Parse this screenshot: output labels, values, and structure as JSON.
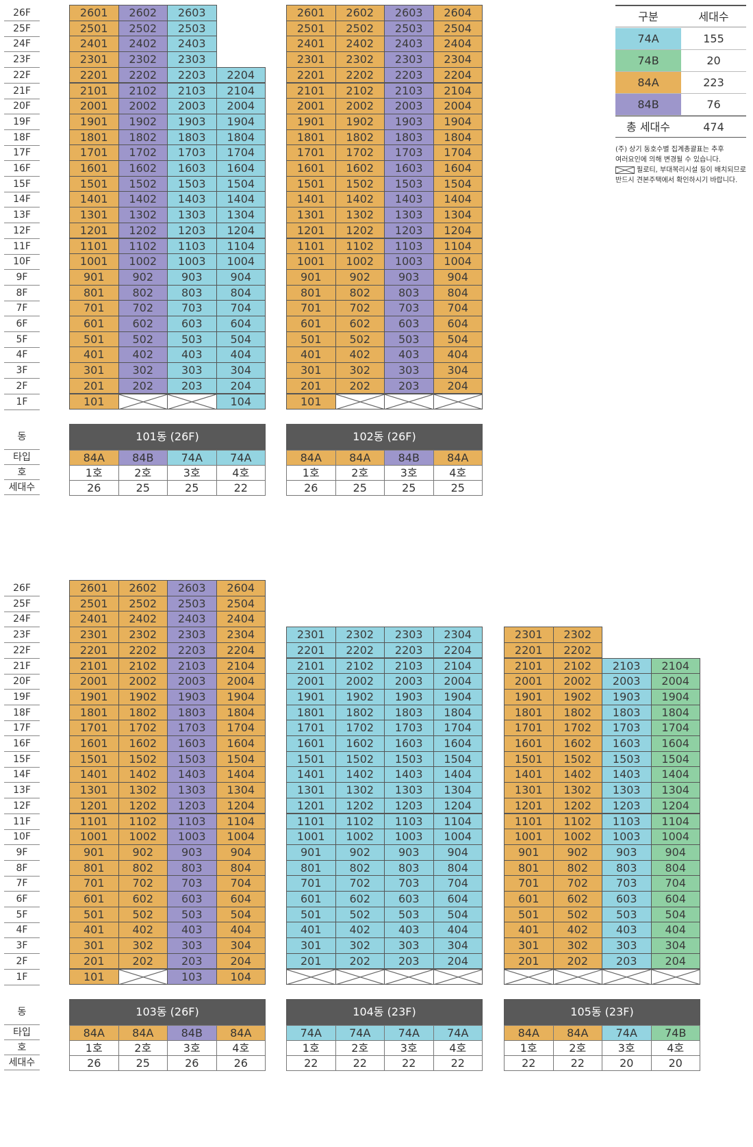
{
  "colors": {
    "74A": "#94d4e1",
    "74B": "#8fd0a3",
    "84A": "#e7b15b",
    "84B": "#9d96cb",
    "header": "#595959"
  },
  "labels": {
    "dong": "동",
    "type": "타입",
    "ho": "호",
    "units": "세대수"
  },
  "floors_top": [
    "26F",
    "25F",
    "24F",
    "23F",
    "22F",
    "21F",
    "20F",
    "19F",
    "18F",
    "17F",
    "16F",
    "15F",
    "14F",
    "13F",
    "12F",
    "11F",
    "10F",
    "9F",
    "8F",
    "7F",
    "6F",
    "5F",
    "4F",
    "3F",
    "2F",
    "1F"
  ],
  "floors_bottom": [
    "26F",
    "25F",
    "24F",
    "23F",
    "22F",
    "21F",
    "20F",
    "19F",
    "18F",
    "17F",
    "16F",
    "15F",
    "14F",
    "13F",
    "12F",
    "11F",
    "10F",
    "9F",
    "8F",
    "7F",
    "6F",
    "5F",
    "4F",
    "3F",
    "2F",
    "1F"
  ],
  "legend": {
    "head": [
      "구분",
      "세대수"
    ],
    "rows": [
      {
        "type": "74A",
        "count": "155"
      },
      {
        "type": "74B",
        "count": "20"
      },
      {
        "type": "84A",
        "count": "223"
      },
      {
        "type": "84B",
        "count": "76"
      }
    ],
    "total_label": "총 세대수",
    "total": "474",
    "note1": "(주) 상기 동호수별 집계총괄표는 추후",
    "note2": "여러요인에 의해 변경될 수 있습니다.",
    "note3": "필로티, 부대복리시설 등이 배치되므로",
    "note4": "반드시 견본주택에서 확인하시기 바랍니다."
  },
  "buildings": [
    {
      "title": "101동 (26F)",
      "types": [
        "84A",
        "84B",
        "74A",
        "74A"
      ],
      "ho": [
        "1호",
        "2호",
        "3호",
        "4호"
      ],
      "units": [
        "26",
        "25",
        "25",
        "22"
      ],
      "col_max": [
        26,
        26,
        26,
        22
      ],
      "pilotis": [
        [],
        [
          1
        ],
        [
          1
        ],
        []
      ]
    },
    {
      "title": "102동 (26F)",
      "types": [
        "84A",
        "84A",
        "84B",
        "84A"
      ],
      "ho": [
        "1호",
        "2호",
        "3호",
        "4호"
      ],
      "units": [
        "26",
        "25",
        "25",
        "25"
      ],
      "col_max": [
        26,
        26,
        26,
        26
      ],
      "pilotis": [
        [],
        [
          1
        ],
        [
          1
        ],
        [
          1
        ]
      ]
    },
    {
      "title": "103동 (26F)",
      "types": [
        "84A",
        "84A",
        "84B",
        "84A"
      ],
      "ho": [
        "1호",
        "2호",
        "3호",
        "4호"
      ],
      "units": [
        "26",
        "25",
        "26",
        "26"
      ],
      "col_max": [
        26,
        26,
        26,
        26
      ],
      "pilotis": [
        [],
        [
          1
        ],
        [],
        []
      ]
    },
    {
      "title": "104동 (23F)",
      "types": [
        "74A",
        "74A",
        "74A",
        "74A"
      ],
      "ho": [
        "1호",
        "2호",
        "3호",
        "4호"
      ],
      "units": [
        "22",
        "22",
        "22",
        "22"
      ],
      "col_max": [
        23,
        23,
        23,
        23
      ],
      "pilotis": [
        [
          1
        ],
        [
          1
        ],
        [
          1
        ],
        [
          1
        ]
      ]
    },
    {
      "title": "105동 (23F)",
      "types": [
        "84A",
        "84A",
        "74A",
        "74B"
      ],
      "ho": [
        "1호",
        "2호",
        "3호",
        "4호"
      ],
      "units": [
        "22",
        "22",
        "20",
        "20"
      ],
      "col_max": [
        23,
        23,
        21,
        21
      ],
      "pilotis": [
        [
          1
        ],
        [
          1
        ],
        [
          1
        ],
        [
          1
        ]
      ]
    }
  ]
}
